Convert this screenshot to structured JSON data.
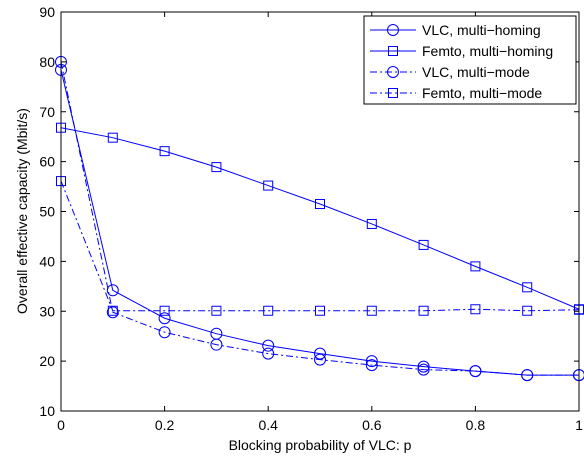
{
  "chart_data": {
    "type": "line",
    "xlabel": "Blocking probability of VLC: p",
    "ylabel": "Overall effective capacity (Mbit/s)",
    "xlim": [
      0,
      1
    ],
    "ylim": [
      10,
      90
    ],
    "x_ticks": [
      "0",
      "0.2",
      "0.4",
      "0.6",
      "0.8",
      "1"
    ],
    "y_ticks": [
      "10",
      "20",
      "30",
      "40",
      "50",
      "60",
      "70",
      "80",
      "90"
    ],
    "grid": false,
    "legend_position": "top-right",
    "x": [
      0,
      0.1,
      0.2,
      0.3,
      0.4,
      0.5,
      0.6,
      0.7,
      0.8,
      0.9,
      1.0
    ],
    "series": [
      {
        "name": "VLC, multi−homing",
        "marker": "circle",
        "linestyle": "solid",
        "color": "#0000ff",
        "values": [
          78.4,
          34.2,
          28.6,
          25.5,
          23.1,
          21.5,
          20.0,
          18.9,
          18.0,
          17.2,
          17.2
        ]
      },
      {
        "name": "Femto, multi−homing",
        "marker": "square",
        "linestyle": "solid",
        "color": "#0000ff",
        "values": [
          66.8,
          64.8,
          62.1,
          58.9,
          55.2,
          51.5,
          47.5,
          43.3,
          39.0,
          34.8,
          30.4
        ]
      },
      {
        "name": "VLC, multi−mode",
        "marker": "circle",
        "linestyle": "dashdot",
        "color": "#0000ff",
        "values": [
          80.0,
          29.8,
          25.8,
          23.3,
          21.5,
          20.3,
          19.2,
          18.3,
          18.0,
          17.2,
          17.2
        ]
      },
      {
        "name": "Femto, multi−mode",
        "marker": "square",
        "linestyle": "dashdot",
        "color": "#0000ff",
        "values": [
          56.1,
          30.1,
          30.1,
          30.1,
          30.1,
          30.1,
          30.1,
          30.1,
          30.4,
          30.1,
          30.3
        ]
      }
    ]
  }
}
